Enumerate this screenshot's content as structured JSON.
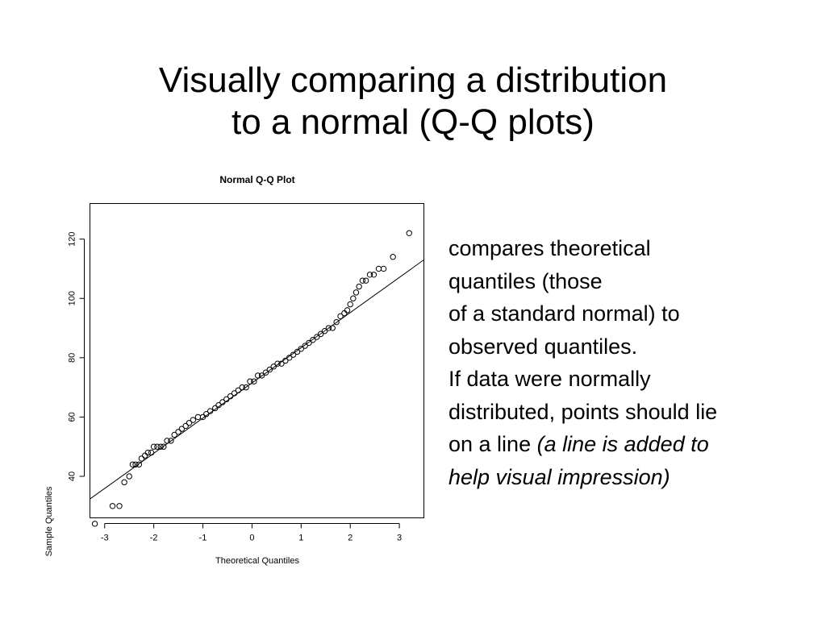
{
  "slide": {
    "title_line1": "Visually comparing a distribution",
    "title_line2": "to a normal (Q-Q plots)"
  },
  "description": {
    "line1": "compares theoretical",
    "line2": "quantiles (those",
    "line3": "of a standard normal) to",
    "line4": "observed quantiles.",
    "line5": "If data were normally",
    "line6": "distributed, points should lie",
    "line7_plain": "on a line ",
    "line7_italic": "(a line is added to",
    "line8_italic": "help visual impression)"
  },
  "chart_data": {
    "type": "scatter",
    "title": "Normal Q-Q Plot",
    "xlabel": "Theoretical Quantiles",
    "ylabel": "Sample Quantiles",
    "xlim": [
      -3.3,
      3.5
    ],
    "ylim": [
      26,
      132
    ],
    "x_ticks": [
      -3,
      -2,
      -1,
      0,
      1,
      2,
      3
    ],
    "y_ticks": [
      40,
      60,
      80,
      100,
      120
    ],
    "grid": false,
    "legend": "none",
    "marker": "open-circle",
    "reference_line": {
      "x1": -3.5,
      "y1": 30,
      "x2": 3.5,
      "y2": 113
    },
    "points": [
      {
        "x": -3.2,
        "y": 24
      },
      {
        "x": -2.84,
        "y": 30
      },
      {
        "x": -2.7,
        "y": 30
      },
      {
        "x": -2.6,
        "y": 38
      },
      {
        "x": -2.5,
        "y": 40
      },
      {
        "x": -2.43,
        "y": 44
      },
      {
        "x": -2.37,
        "y": 44
      },
      {
        "x": -2.3,
        "y": 44
      },
      {
        "x": -2.25,
        "y": 46
      },
      {
        "x": -2.18,
        "y": 47
      },
      {
        "x": -2.12,
        "y": 48
      },
      {
        "x": -2.05,
        "y": 48
      },
      {
        "x": -2.0,
        "y": 50
      },
      {
        "x": -1.93,
        "y": 50
      },
      {
        "x": -1.86,
        "y": 50
      },
      {
        "x": -1.8,
        "y": 50
      },
      {
        "x": -1.73,
        "y": 52
      },
      {
        "x": -1.65,
        "y": 52
      },
      {
        "x": -1.58,
        "y": 54
      },
      {
        "x": -1.5,
        "y": 55
      },
      {
        "x": -1.43,
        "y": 56
      },
      {
        "x": -1.35,
        "y": 57
      },
      {
        "x": -1.28,
        "y": 58
      },
      {
        "x": -1.2,
        "y": 59
      },
      {
        "x": -1.1,
        "y": 60
      },
      {
        "x": -1.0,
        "y": 60
      },
      {
        "x": -0.93,
        "y": 61
      },
      {
        "x": -0.85,
        "y": 62
      },
      {
        "x": -0.75,
        "y": 63
      },
      {
        "x": -0.68,
        "y": 64
      },
      {
        "x": -0.6,
        "y": 65
      },
      {
        "x": -0.52,
        "y": 66
      },
      {
        "x": -0.44,
        "y": 67
      },
      {
        "x": -0.36,
        "y": 68
      },
      {
        "x": -0.28,
        "y": 69
      },
      {
        "x": -0.2,
        "y": 70
      },
      {
        "x": -0.12,
        "y": 70
      },
      {
        "x": -0.04,
        "y": 72
      },
      {
        "x": 0.04,
        "y": 72
      },
      {
        "x": 0.12,
        "y": 74
      },
      {
        "x": 0.2,
        "y": 74
      },
      {
        "x": 0.28,
        "y": 75
      },
      {
        "x": 0.36,
        "y": 76
      },
      {
        "x": 0.44,
        "y": 77
      },
      {
        "x": 0.52,
        "y": 78
      },
      {
        "x": 0.6,
        "y": 78
      },
      {
        "x": 0.68,
        "y": 79
      },
      {
        "x": 0.76,
        "y": 80
      },
      {
        "x": 0.84,
        "y": 81
      },
      {
        "x": 0.92,
        "y": 82
      },
      {
        "x": 1.0,
        "y": 83
      },
      {
        "x": 1.08,
        "y": 84
      },
      {
        "x": 1.16,
        "y": 85
      },
      {
        "x": 1.24,
        "y": 86
      },
      {
        "x": 1.32,
        "y": 87
      },
      {
        "x": 1.4,
        "y": 88
      },
      {
        "x": 1.48,
        "y": 89
      },
      {
        "x": 1.56,
        "y": 90
      },
      {
        "x": 1.64,
        "y": 90
      },
      {
        "x": 1.72,
        "y": 92
      },
      {
        "x": 1.8,
        "y": 94
      },
      {
        "x": 1.88,
        "y": 95
      },
      {
        "x": 1.94,
        "y": 96
      },
      {
        "x": 2.0,
        "y": 98
      },
      {
        "x": 2.06,
        "y": 100
      },
      {
        "x": 2.12,
        "y": 102
      },
      {
        "x": 2.18,
        "y": 104
      },
      {
        "x": 2.25,
        "y": 106
      },
      {
        "x": 2.32,
        "y": 106
      },
      {
        "x": 2.4,
        "y": 108
      },
      {
        "x": 2.48,
        "y": 108
      },
      {
        "x": 2.58,
        "y": 110
      },
      {
        "x": 2.68,
        "y": 110
      },
      {
        "x": 2.87,
        "y": 114
      },
      {
        "x": 3.2,
        "y": 122
      }
    ]
  }
}
